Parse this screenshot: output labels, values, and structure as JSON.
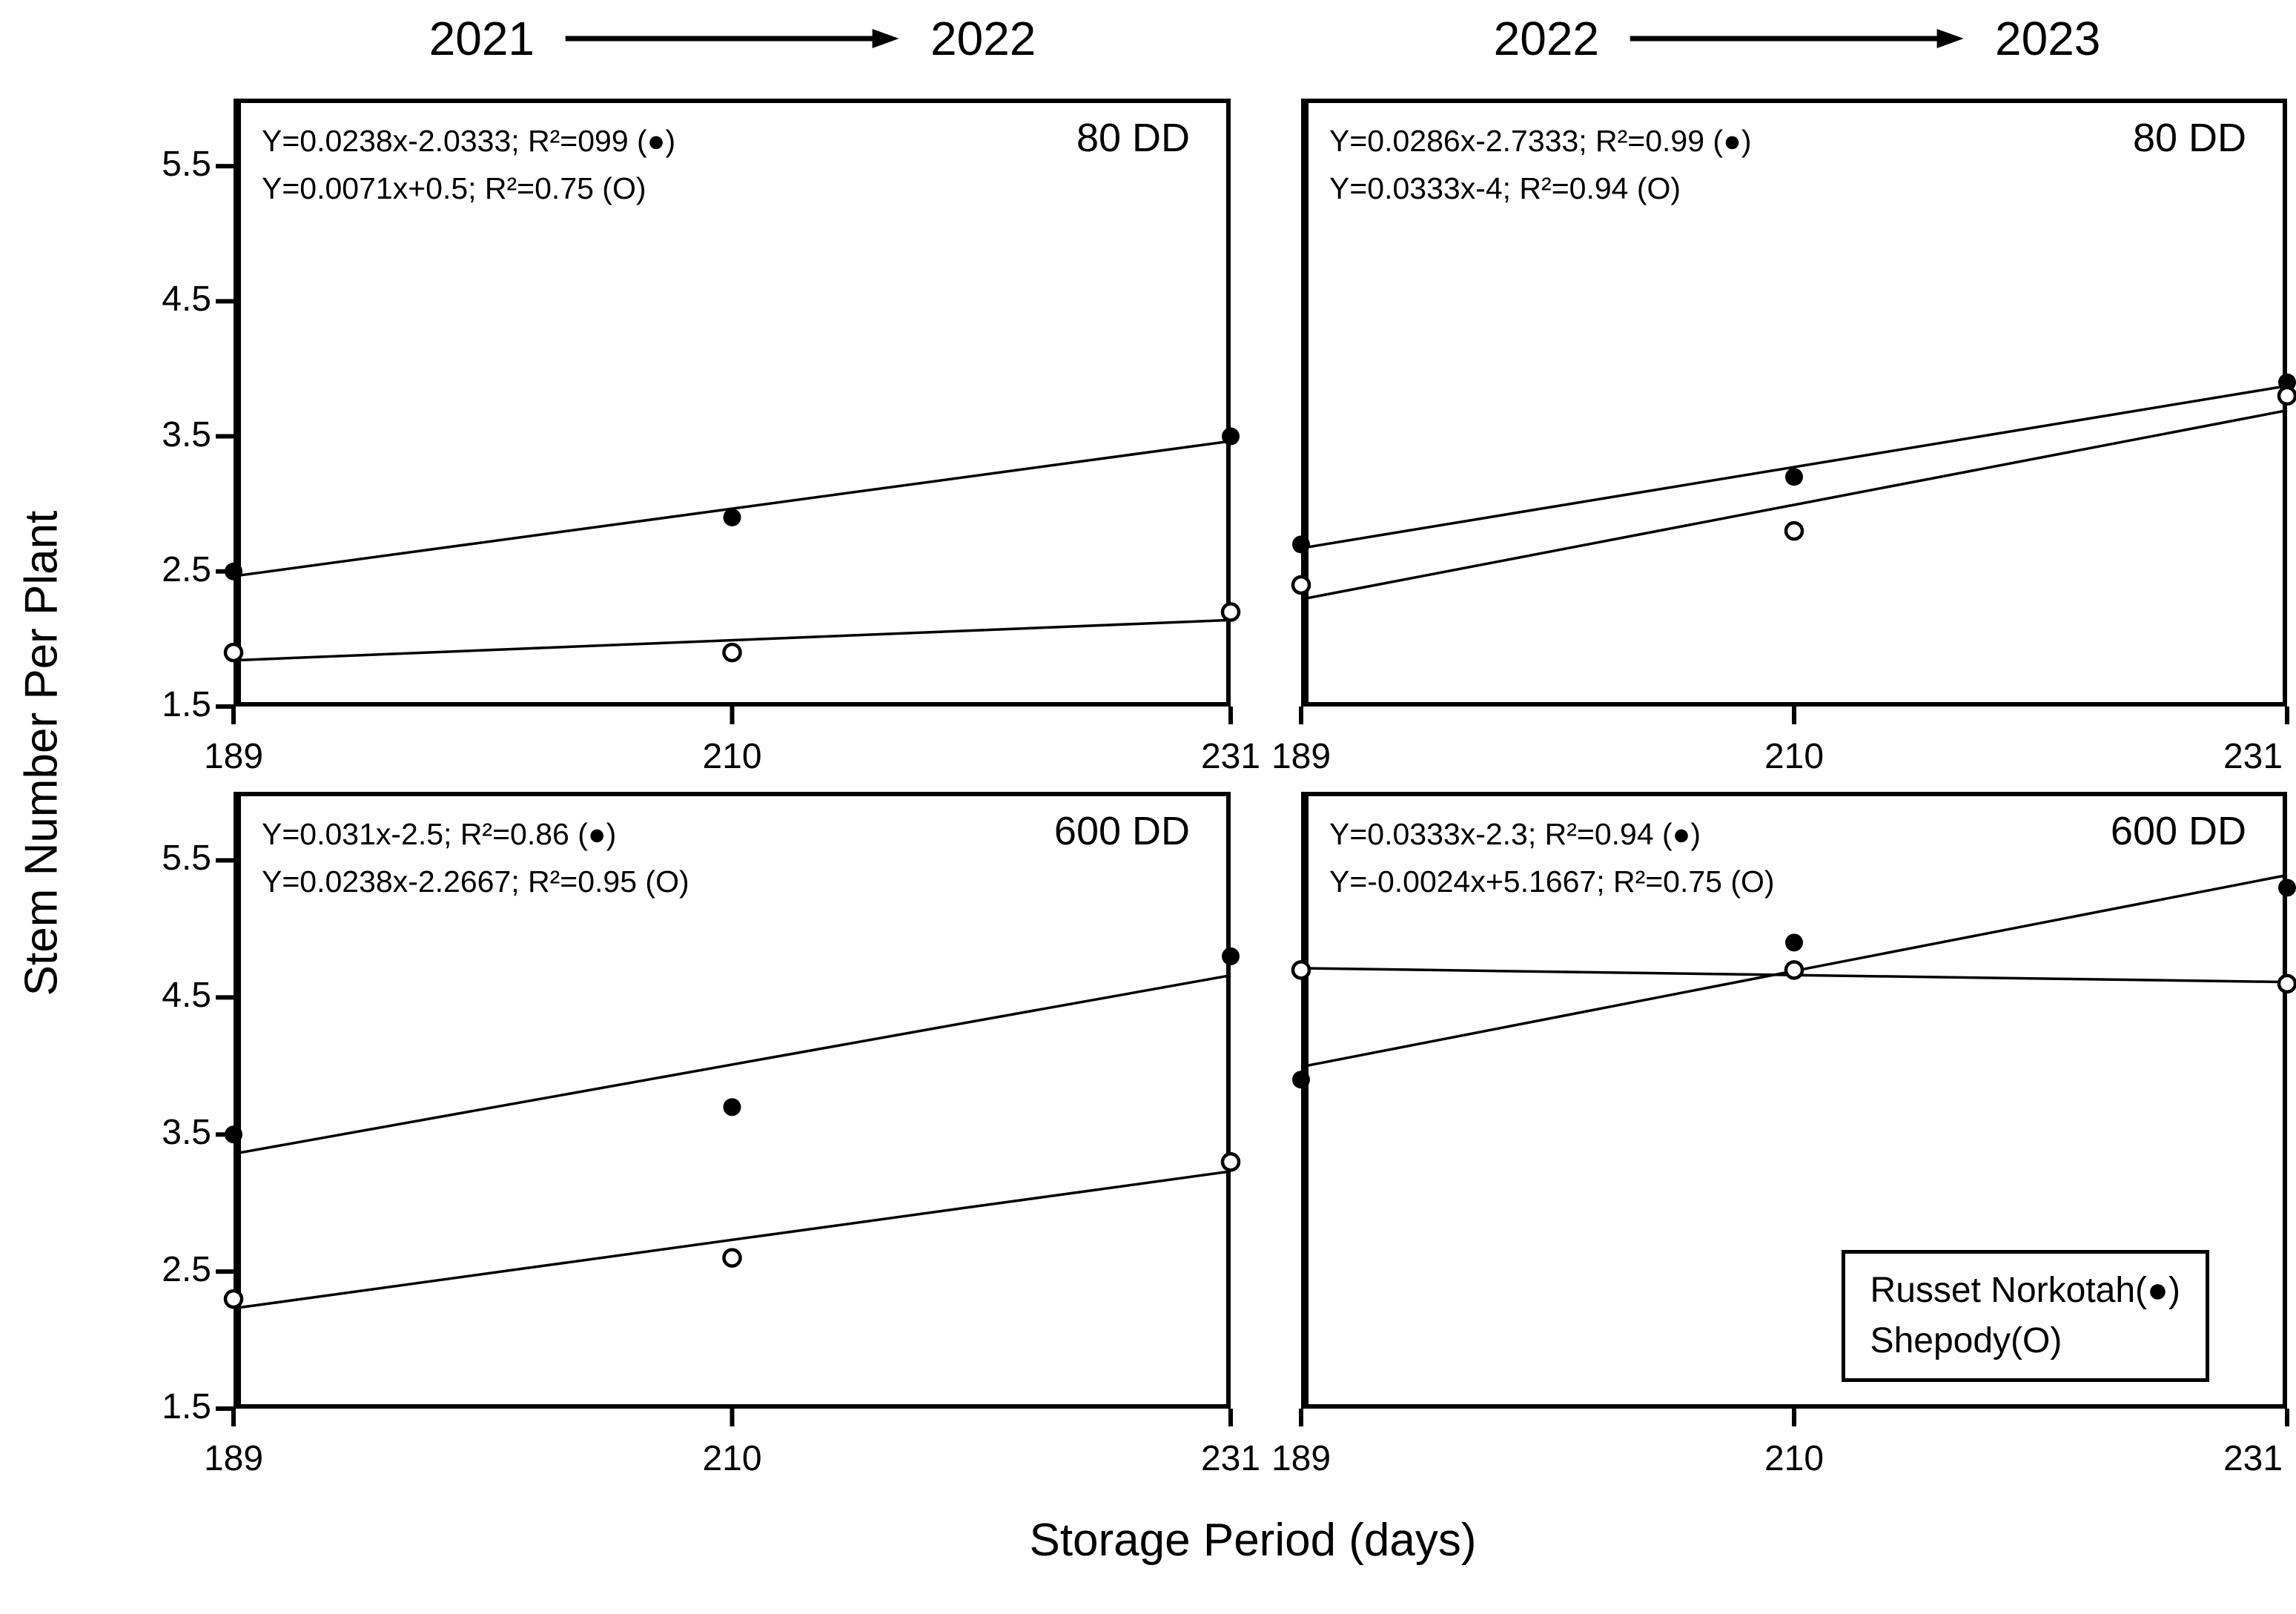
{
  "figure": {
    "background": "#ffffff",
    "ink": "#000000"
  },
  "column_titles": [
    {
      "from": "2021",
      "to": "2022"
    },
    {
      "from": "2022",
      "to": "2023"
    }
  ],
  "axes": {
    "x": {
      "label": "Storage Period (days)",
      "ticks": [
        "189",
        "210",
        "231"
      ],
      "range": [
        189,
        231
      ]
    },
    "y": {
      "label": "Stem Number Per Plant",
      "ticks": [
        "1.5",
        "2.5",
        "3.5",
        "4.5",
        "5.5"
      ],
      "range": [
        1.5,
        6.0
      ]
    }
  },
  "legend": {
    "items": [
      "Russet Norkotah(●)",
      "Shepody(O)"
    ]
  },
  "chart_data": {
    "type": "scatter",
    "x_values": [
      189,
      210,
      231
    ],
    "grid": false,
    "panels": [
      {
        "position": "top-left",
        "year_transition": "2021 → 2022",
        "condition": "80 DD",
        "equations": [
          "Y=0.0238x-2.0333; R²=099 (●)",
          "Y=0.0071x+0.5; R²=0.75 (O)"
        ],
        "series": [
          {
            "name": "Russet Norkotah",
            "marker": "filled",
            "values": [
              2.5,
              2.9,
              3.5
            ],
            "fit_slope": 0.0238,
            "fit_intercept": -2.0333,
            "r2": "099"
          },
          {
            "name": "Shepody",
            "marker": "open",
            "values": [
              1.9,
              1.9,
              2.2
            ],
            "fit_slope": 0.0071,
            "fit_intercept": 0.5,
            "r2": "0.75"
          }
        ]
      },
      {
        "position": "top-right",
        "year_transition": "2022 → 2023",
        "condition": "80 DD",
        "equations": [
          "Y=0.0286x-2.7333; R²=0.99 (●)",
          "Y=0.0333x-4; R²=0.94 (O)"
        ],
        "series": [
          {
            "name": "Russet Norkotah",
            "marker": "filled",
            "values": [
              2.7,
              3.2,
              3.9
            ],
            "fit_slope": 0.0286,
            "fit_intercept": -2.7333,
            "r2": "0.99"
          },
          {
            "name": "Shepody",
            "marker": "open",
            "values": [
              2.4,
              2.8,
              3.8
            ],
            "fit_slope": 0.0333,
            "fit_intercept": -4,
            "r2": "0.94"
          }
        ]
      },
      {
        "position": "bottom-left",
        "year_transition": "2021 → 2022",
        "condition": "600 DD",
        "equations": [
          "Y=0.031x-2.5; R²=0.86 (●)",
          "Y=0.0238x-2.2667; R²=0.95 (O)"
        ],
        "series": [
          {
            "name": "Russet Norkotah",
            "marker": "filled",
            "values": [
              3.5,
              3.7,
              4.8
            ],
            "fit_slope": 0.031,
            "fit_intercept": -2.5,
            "r2": "0.86"
          },
          {
            "name": "Shepody",
            "marker": "open",
            "values": [
              2.3,
              2.6,
              3.3
            ],
            "fit_slope": 0.0238,
            "fit_intercept": -2.2667,
            "r2": "0.95"
          }
        ]
      },
      {
        "position": "bottom-right",
        "year_transition": "2022 → 2023",
        "condition": "600 DD",
        "equations": [
          "Y=0.0333x-2.3; R²=0.94 (●)",
          "Y=-0.0024x+5.1667; R²=0.75 (O)"
        ],
        "series": [
          {
            "name": "Russet Norkotah",
            "marker": "filled",
            "values": [
              3.9,
              4.9,
              5.3
            ],
            "fit_slope": 0.0333,
            "fit_intercept": -2.3,
            "r2": "0.94"
          },
          {
            "name": "Shepody",
            "marker": "open",
            "values": [
              4.7,
              4.7,
              4.6
            ],
            "fit_slope": -0.0024,
            "fit_intercept": 5.1667,
            "r2": "0.75"
          }
        ]
      }
    ]
  }
}
